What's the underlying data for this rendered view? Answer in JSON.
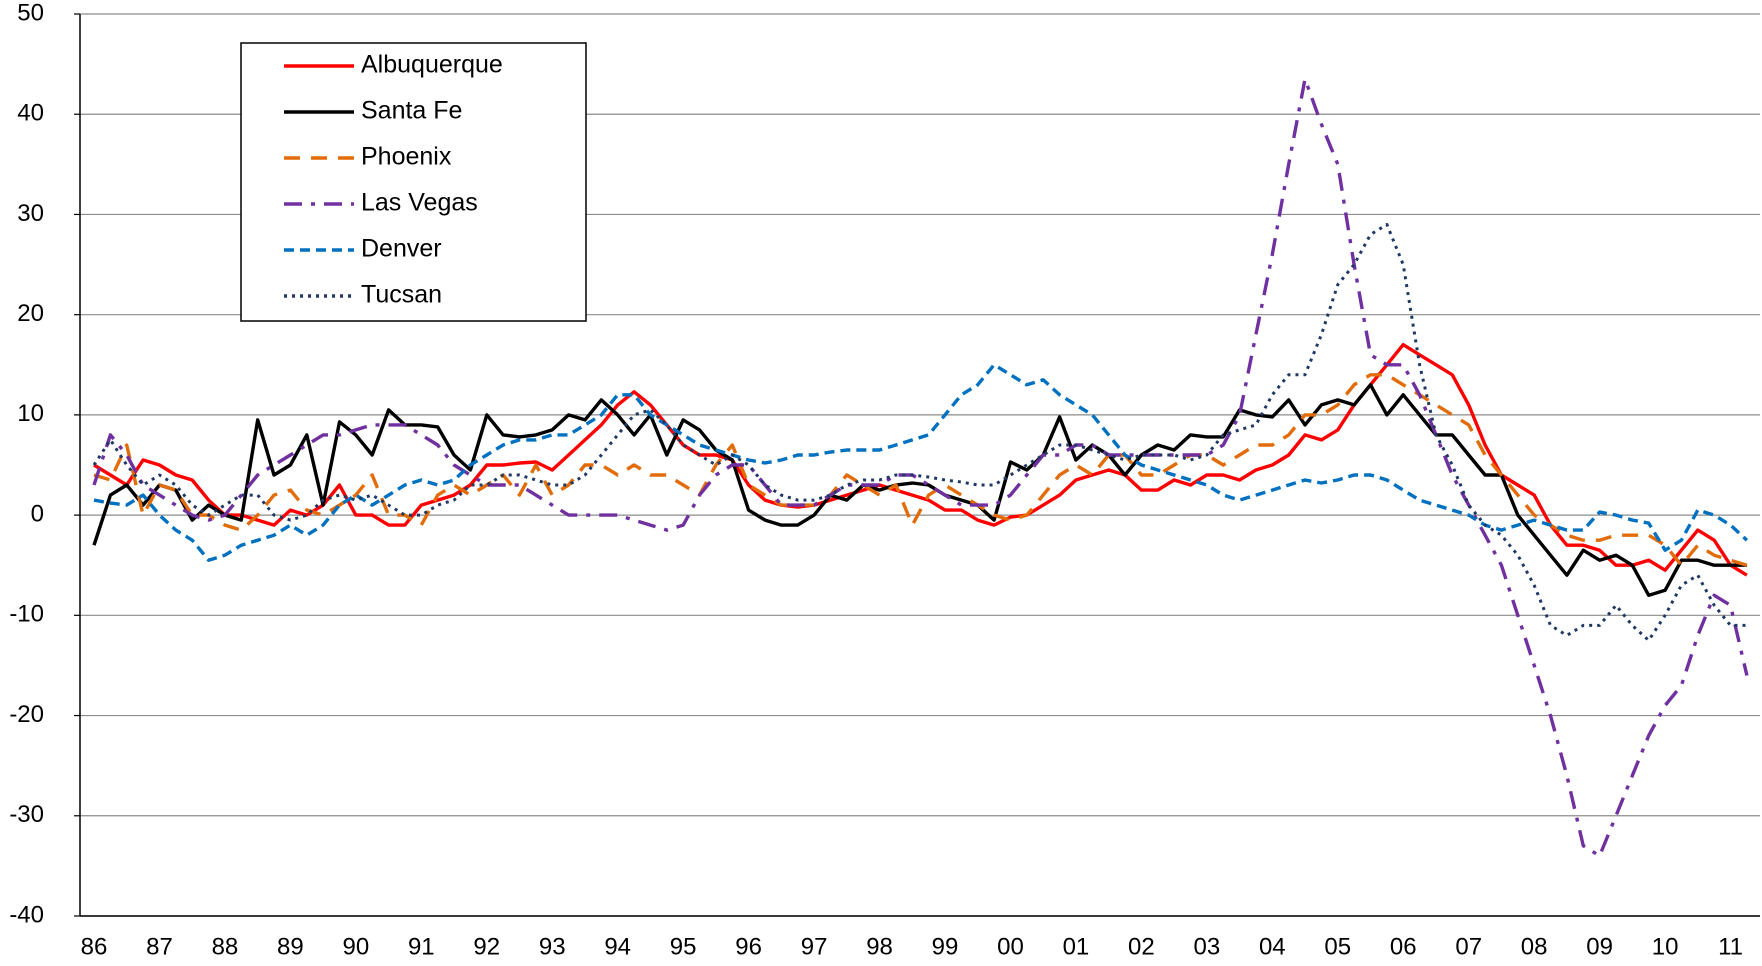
{
  "chart_data": {
    "type": "line",
    "categories": [
      "86",
      null,
      null,
      null,
      "87",
      null,
      null,
      null,
      "88",
      null,
      null,
      null,
      "89",
      null,
      null,
      null,
      "90",
      null,
      null,
      null,
      "91",
      null,
      null,
      null,
      "92",
      null,
      null,
      null,
      "93",
      null,
      null,
      null,
      "94",
      null,
      null,
      null,
      "95",
      null,
      null,
      null,
      "96",
      null,
      null,
      null,
      "97",
      null,
      null,
      null,
      "98",
      null,
      null,
      null,
      "99",
      null,
      null,
      null,
      "00",
      null,
      null,
      null,
      "01",
      null,
      null,
      null,
      "02",
      null,
      null,
      null,
      "03",
      null,
      null,
      null,
      "04",
      null,
      null,
      null,
      "05",
      null,
      null,
      null,
      "06",
      null,
      null,
      null,
      "07",
      null,
      null,
      null,
      "08",
      null,
      null,
      null,
      "09",
      null,
      null,
      null,
      "10",
      null,
      null,
      null,
      "11",
      null
    ],
    "ylim": [
      -40,
      50
    ],
    "yticks": [
      -40,
      -30,
      -20,
      -10,
      0,
      10,
      20,
      30,
      40,
      50
    ],
    "grid": true,
    "legend": "upper left",
    "series": [
      {
        "name": "Albuquerque",
        "color": "#ff0000",
        "dash": "solid",
        "values": [
          5,
          4,
          3,
          5.5,
          5,
          4,
          3.5,
          1.5,
          0,
          0,
          -0.5,
          -1,
          0.5,
          0,
          1,
          3,
          0,
          0,
          -1,
          -1,
          1,
          1.5,
          2,
          3,
          5,
          5,
          5.2,
          5.3,
          4.5,
          6,
          7.5,
          9,
          11,
          12.3,
          11,
          9,
          7,
          6,
          6,
          5.5,
          3,
          1.5,
          1,
          0.8,
          1,
          1.5,
          2,
          2.5,
          3,
          2.5,
          2,
          1.5,
          0.5,
          0.5,
          -0.5,
          -1,
          -0.2,
          0,
          1,
          2,
          3.5,
          4,
          4.5,
          4,
          2.5,
          2.5,
          3.5,
          3,
          4,
          4,
          3.5,
          4.5,
          5,
          6,
          8,
          7.5,
          8.5,
          11,
          13,
          15,
          17,
          16,
          15,
          14,
          11,
          7,
          4,
          3,
          2,
          -1,
          -3,
          -3,
          -3.5,
          -5,
          -5,
          -4.5,
          -5.5,
          -3.5,
          -1.5,
          -2.5,
          -5,
          -6
        ]
      },
      {
        "name": "Santa Fe",
        "color": "#000000",
        "dash": "solid",
        "values": [
          -3,
          2,
          3,
          1,
          3,
          2.5,
          -0.5,
          1,
          0,
          -0.5,
          9.5,
          4,
          5,
          8,
          1,
          9.3,
          8,
          6,
          10.5,
          9,
          9,
          8.8,
          6,
          4.5,
          10,
          8,
          7.8,
          8,
          8.5,
          10,
          9.5,
          11.5,
          10,
          8,
          10,
          6,
          9.5,
          8.5,
          6.5,
          5.5,
          0.5,
          -0.5,
          -1,
          -1,
          0,
          2,
          1.5,
          3,
          2.5,
          3,
          3.2,
          3,
          2,
          1.5,
          1,
          -0.5,
          5.3,
          4.5,
          6,
          9.8,
          5.5,
          7,
          6,
          4,
          6,
          7,
          6.5,
          8,
          7.8,
          7.8,
          10.5,
          10,
          9.8,
          11.5,
          9,
          11,
          11.5,
          11,
          13,
          10,
          12,
          10,
          8,
          8,
          6,
          4,
          4,
          0,
          -2,
          -4,
          -6,
          -3.5,
          -4.5,
          -4,
          -5,
          -8,
          -7.5,
          -4.5,
          -4.5,
          -5,
          -5,
          -5
        ]
      },
      {
        "name": "Phoenix",
        "color": "#e36c0a",
        "dash": "dash",
        "values": [
          4,
          3.5,
          7,
          0,
          3,
          2.5,
          0,
          0,
          -1,
          -1.5,
          0,
          2,
          2.5,
          0.5,
          0,
          1,
          2,
          4,
          0,
          0,
          -1,
          2,
          3,
          2,
          3,
          4,
          2,
          5,
          2,
          3,
          5,
          5,
          4,
          5,
          4,
          4,
          3,
          2,
          5,
          7,
          3,
          2,
          1,
          1,
          1,
          2,
          4,
          3,
          2,
          3,
          -1,
          2,
          3,
          2,
          1,
          0,
          -0.5,
          0,
          2,
          4,
          5,
          4,
          6,
          6,
          4,
          4,
          5,
          6,
          6,
          5,
          6,
          7,
          7,
          8,
          10,
          10,
          11,
          13,
          14,
          14,
          13,
          12,
          11,
          10,
          9,
          6,
          4,
          2,
          0,
          -1,
          -2,
          -2.5,
          -2.5,
          -2,
          -2,
          -2,
          -3,
          -5,
          -3,
          -4,
          -4.5,
          -5
        ]
      },
      {
        "name": "Las Vegas",
        "color": "#7030a0",
        "dash": "dashdot",
        "values": [
          3,
          8,
          6,
          3,
          2,
          1,
          0,
          -0.5,
          0,
          2,
          4,
          5,
          6,
          7,
          8,
          8,
          8.5,
          9,
          9,
          9,
          8,
          7,
          5,
          4,
          3,
          3,
          3,
          2,
          1,
          0,
          0,
          0,
          0,
          -0.5,
          -1,
          -1.5,
          -1,
          2,
          4,
          5,
          5,
          3,
          1,
          1,
          1,
          2,
          3,
          3,
          3,
          4,
          4,
          3,
          2,
          1,
          1,
          1,
          2,
          4,
          6,
          6,
          7,
          7,
          6,
          6,
          6,
          6,
          6,
          6,
          6,
          7,
          10,
          18,
          26,
          35,
          43.5,
          39,
          35,
          25,
          16,
          15,
          15,
          12,
          8,
          4,
          1,
          -2,
          -5,
          -10,
          -15,
          -20,
          -26,
          -33,
          -34,
          -30,
          -26,
          -22,
          -19,
          -17,
          -12,
          -8,
          -9,
          -16
        ]
      },
      {
        "name": "Denver",
        "color": "#0070c0",
        "dash": "shortdash",
        "values": [
          1.5,
          1.2,
          1,
          2,
          0,
          -1.5,
          -2.5,
          -4.5,
          -4,
          -3,
          -2.5,
          -2,
          -1,
          -2,
          -1,
          1,
          2,
          1,
          2,
          3,
          3.5,
          3,
          3.5,
          5,
          6,
          7,
          7.5,
          7.5,
          8,
          8,
          9,
          10,
          12,
          12,
          10,
          9,
          8,
          7,
          6.5,
          6,
          5.5,
          5.2,
          5.5,
          6,
          6,
          6.3,
          6.5,
          6.5,
          6.5,
          7,
          7.5,
          8,
          10,
          12,
          13,
          15,
          14,
          13,
          13.5,
          12,
          11,
          10,
          8,
          6,
          5,
          4.5,
          4,
          3.5,
          3,
          2,
          1.5,
          2,
          2.5,
          3,
          3.5,
          3.2,
          3.5,
          4,
          4,
          3.5,
          2.5,
          1.5,
          1,
          0.5,
          0,
          -1,
          -1.5,
          -1,
          -0.5,
          -1,
          -1.5,
          -1.5,
          0.3,
          0,
          -0.5,
          -0.8,
          -3.5,
          -2.5,
          0.5,
          0,
          -1,
          -2.5
        ]
      },
      {
        "name": "Tucsan",
        "color": "#1f3864",
        "dash": "dot",
        "values": [
          5,
          7.5,
          5,
          3,
          4,
          3,
          1,
          0,
          1,
          2,
          2,
          0,
          -0.5,
          0,
          1.5,
          2,
          1.5,
          2,
          1,
          0,
          0,
          1,
          1.5,
          3,
          3,
          4,
          4,
          3.5,
          3,
          3,
          4,
          6,
          8,
          10,
          10.5,
          9,
          7,
          6,
          5,
          6,
          5,
          3,
          2,
          1.5,
          1.5,
          2,
          3,
          3.5,
          3.5,
          4,
          4,
          3.8,
          3.5,
          3.3,
          3,
          3,
          4,
          5,
          6,
          7,
          7,
          6.5,
          6,
          5.5,
          6,
          6,
          6,
          5.5,
          6,
          8,
          8.5,
          9,
          12,
          14,
          14,
          18,
          23,
          25,
          28,
          29,
          25,
          15,
          8,
          5,
          1,
          -1,
          -2,
          -4,
          -7,
          -11,
          -12,
          -11,
          -11,
          -9,
          -11,
          -12.5,
          -10,
          -7,
          -6,
          -9,
          -11,
          -11
        ]
      }
    ]
  }
}
